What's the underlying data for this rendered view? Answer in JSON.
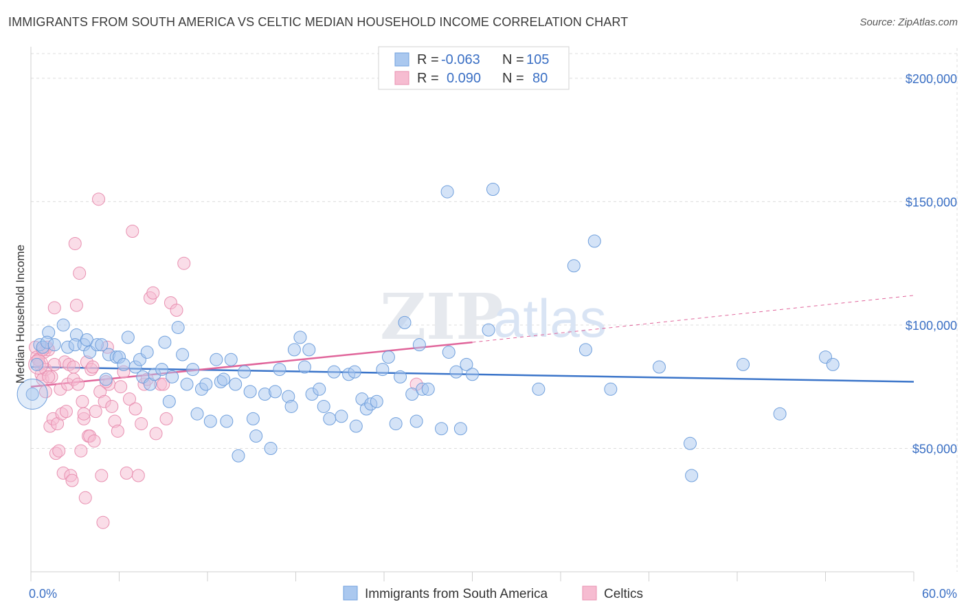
{
  "title": "IMMIGRANTS FROM SOUTH AMERICA VS CELTIC MEDIAN HOUSEHOLD INCOME CORRELATION CHART",
  "source": "Source: ZipAtlas.com",
  "watermark": {
    "part1": "ZIP",
    "part2": "atlas"
  },
  "colors": {
    "blue_fill": "#aac8ef",
    "blue_stroke": "#6f9fdc",
    "blue_line": "#3a74c9",
    "pink_fill": "#f6bcd1",
    "pink_stroke": "#e88fb0",
    "pink_line": "#e0649a",
    "grid": "#dcdcdc",
    "tick_text": "#3a6fc4"
  },
  "legend": {
    "rows": [
      {
        "r_label": "R =",
        "r_value": "-0.063",
        "n_label": "N =",
        "n_value": "105"
      },
      {
        "r_label": "R =",
        "r_value": "0.090",
        "n_label": "N =",
        "n_value": "80"
      }
    ]
  },
  "chart_data": {
    "type": "scatter",
    "xlabel": "",
    "ylabel": "Median Household Income",
    "xlim": [
      0,
      60
    ],
    "ylim": [
      0,
      210000
    ],
    "x_tick_labels": [
      "0.0%",
      "60.0%"
    ],
    "y_ticks": [
      50000,
      100000,
      150000,
      200000
    ],
    "y_tick_labels": [
      "$50,000",
      "$100,000",
      "$150,000",
      "$200,000"
    ],
    "grid": true,
    "series": [
      {
        "name": "Immigrants from South America",
        "color": "blue",
        "trend": {
          "x0": 0,
          "y0": 83000,
          "x1": 60,
          "y1": 77000,
          "dashed_extension": false
        },
        "points": [
          [
            0.1,
            72000
          ],
          [
            0.4,
            84000
          ],
          [
            0.6,
            92000
          ],
          [
            0.8,
            91000
          ],
          [
            1.2,
            97000
          ],
          [
            1.1,
            93000
          ],
          [
            1.6,
            92000
          ],
          [
            2.2,
            100000
          ],
          [
            2.5,
            91000
          ],
          [
            3.1,
            96000
          ],
          [
            3.0,
            92000
          ],
          [
            3.6,
            92000
          ],
          [
            3.8,
            94000
          ],
          [
            4.0,
            89000
          ],
          [
            4.5,
            92000
          ],
          [
            4.8,
            92000
          ],
          [
            5.1,
            78000
          ],
          [
            5.3,
            88000
          ],
          [
            5.8,
            87000
          ],
          [
            6.0,
            87000
          ],
          [
            6.3,
            84000
          ],
          [
            6.6,
            95000
          ],
          [
            7.1,
            83000
          ],
          [
            7.4,
            86000
          ],
          [
            7.6,
            79000
          ],
          [
            7.9,
            89000
          ],
          [
            8.1,
            76000
          ],
          [
            8.4,
            80000
          ],
          [
            8.9,
            82000
          ],
          [
            9.1,
            93000
          ],
          [
            9.4,
            69000
          ],
          [
            9.6,
            79000
          ],
          [
            10.0,
            99000
          ],
          [
            10.3,
            88000
          ],
          [
            10.6,
            76000
          ],
          [
            11.0,
            82000
          ],
          [
            11.3,
            64000
          ],
          [
            11.6,
            74000
          ],
          [
            11.9,
            76000
          ],
          [
            12.2,
            61000
          ],
          [
            12.6,
            86000
          ],
          [
            12.9,
            77000
          ],
          [
            13.1,
            78000
          ],
          [
            13.3,
            61000
          ],
          [
            13.6,
            86000
          ],
          [
            13.9,
            76000
          ],
          [
            14.1,
            47000
          ],
          [
            14.5,
            81000
          ],
          [
            14.9,
            73000
          ],
          [
            15.1,
            62000
          ],
          [
            15.3,
            55000
          ],
          [
            15.9,
            72000
          ],
          [
            16.3,
            50000
          ],
          [
            16.6,
            73000
          ],
          [
            16.9,
            82000
          ],
          [
            17.5,
            71000
          ],
          [
            17.7,
            67000
          ],
          [
            17.9,
            90000
          ],
          [
            18.3,
            95000
          ],
          [
            18.6,
            83000
          ],
          [
            18.9,
            90000
          ],
          [
            19.1,
            72000
          ],
          [
            19.6,
            74000
          ],
          [
            19.9,
            67000
          ],
          [
            20.3,
            62000
          ],
          [
            20.6,
            81000
          ],
          [
            21.1,
            63000
          ],
          [
            21.6,
            80000
          ],
          [
            22.0,
            81000
          ],
          [
            22.1,
            59000
          ],
          [
            22.5,
            70000
          ],
          [
            22.8,
            66000
          ],
          [
            23.1,
            68000
          ],
          [
            23.5,
            69000
          ],
          [
            23.9,
            82000
          ],
          [
            24.3,
            87000
          ],
          [
            24.8,
            60000
          ],
          [
            25.1,
            79000
          ],
          [
            25.4,
            101000
          ],
          [
            25.9,
            72000
          ],
          [
            26.2,
            61000
          ],
          [
            26.4,
            92000
          ],
          [
            26.6,
            74000
          ],
          [
            27.0,
            74000
          ],
          [
            27.9,
            58000
          ],
          [
            28.3,
            154000
          ],
          [
            28.4,
            89000
          ],
          [
            28.9,
            81000
          ],
          [
            29.2,
            58000
          ],
          [
            29.6,
            84000
          ],
          [
            30.0,
            80000
          ],
          [
            31.1,
            98000
          ],
          [
            31.4,
            155000
          ],
          [
            34.5,
            74000
          ],
          [
            36.9,
            124000
          ],
          [
            37.7,
            90000
          ],
          [
            38.3,
            134000
          ],
          [
            39.4,
            74000
          ],
          [
            42.7,
            83000
          ],
          [
            44.8,
            52000
          ],
          [
            44.9,
            39000
          ],
          [
            48.4,
            84000
          ],
          [
            50.9,
            64000
          ],
          [
            54.0,
            87000
          ],
          [
            54.5,
            84000
          ]
        ]
      },
      {
        "name": "Celtics",
        "color": "pink",
        "trend": {
          "x0": 0,
          "y0": 75000,
          "x1": 30,
          "y1": 93000,
          "dashed_extension": true,
          "dash_x1": 60,
          "dash_y1": 112000
        },
        "points": [
          [
            0.3,
            91000
          ],
          [
            0.4,
            87000
          ],
          [
            0.5,
            86000
          ],
          [
            0.6,
            84000
          ],
          [
            0.7,
            80000
          ],
          [
            0.8,
            78000
          ],
          [
            0.9,
            89000
          ],
          [
            1.0,
            82000
          ],
          [
            1.1,
            91000
          ],
          [
            1.2,
            90000
          ],
          [
            1.3,
            59000
          ],
          [
            1.4,
            79000
          ],
          [
            1.5,
            62000
          ],
          [
            1.6,
            107000
          ],
          [
            1.7,
            48000
          ],
          [
            1.8,
            60000
          ],
          [
            1.9,
            49000
          ],
          [
            2.0,
            74000
          ],
          [
            2.1,
            64000
          ],
          [
            2.2,
            40000
          ],
          [
            2.3,
            85000
          ],
          [
            2.4,
            65000
          ],
          [
            2.5,
            76000
          ],
          [
            2.6,
            84000
          ],
          [
            2.7,
            39000
          ],
          [
            2.8,
            37000
          ],
          [
            2.9,
            78000
          ],
          [
            3.0,
            133000
          ],
          [
            3.1,
            108000
          ],
          [
            3.2,
            76000
          ],
          [
            3.3,
            121000
          ],
          [
            3.4,
            49000
          ],
          [
            3.5,
            69000
          ],
          [
            3.6,
            62000
          ],
          [
            3.7,
            30000
          ],
          [
            3.8,
            85000
          ],
          [
            3.9,
            55000
          ],
          [
            4.0,
            55000
          ],
          [
            4.1,
            82000
          ],
          [
            4.2,
            83000
          ],
          [
            4.3,
            53000
          ],
          [
            4.4,
            65000
          ],
          [
            4.6,
            151000
          ],
          [
            4.7,
            73000
          ],
          [
            4.8,
            39000
          ],
          [
            4.9,
            20000
          ],
          [
            5.0,
            69000
          ],
          [
            5.2,
            91000
          ],
          [
            5.3,
            76000
          ],
          [
            5.5,
            67000
          ],
          [
            5.7,
            61000
          ],
          [
            5.9,
            57000
          ],
          [
            6.1,
            75000
          ],
          [
            6.3,
            81000
          ],
          [
            6.5,
            40000
          ],
          [
            6.7,
            70000
          ],
          [
            6.9,
            138000
          ],
          [
            7.1,
            66000
          ],
          [
            7.3,
            39000
          ],
          [
            7.5,
            60000
          ],
          [
            7.7,
            76000
          ],
          [
            7.9,
            78000
          ],
          [
            8.1,
            111000
          ],
          [
            8.3,
            113000
          ],
          [
            8.5,
            56000
          ],
          [
            8.8,
            76000
          ],
          [
            9.2,
            62000
          ],
          [
            9.5,
            109000
          ],
          [
            9.9,
            106000
          ],
          [
            10.4,
            125000
          ],
          [
            1.0,
            73000
          ],
          [
            1.6,
            84000
          ],
          [
            2.9,
            83000
          ],
          [
            0.5,
            86000
          ],
          [
            0.8,
            90000
          ],
          [
            1.2,
            79000
          ],
          [
            3.6,
            64000
          ],
          [
            5.1,
            77000
          ],
          [
            9.0,
            76000
          ],
          [
            26.2,
            76000
          ]
        ]
      }
    ]
  },
  "bottom_legend": [
    {
      "label": "Immigrants from South America",
      "color": "blue"
    },
    {
      "label": "Celtics",
      "color": "pink"
    }
  ]
}
